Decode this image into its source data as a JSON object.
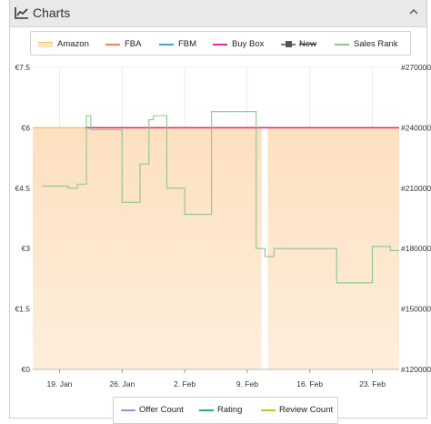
{
  "panel": {
    "title": "Charts",
    "chart_icon": "line-chart-icon",
    "toggle_icon": "chevron-up-icon"
  },
  "legend_top": [
    {
      "name": "Amazon",
      "color": "#f5c27a",
      "style": "area"
    },
    {
      "name": "FBA",
      "color": "#ff7f50",
      "style": "line"
    },
    {
      "name": "FBM",
      "color": "#2fa6de",
      "style": "line"
    },
    {
      "name": "Buy Box",
      "color": "#e0279b",
      "style": "line"
    },
    {
      "name": "New",
      "color": "#555555",
      "style": "marker-struck"
    },
    {
      "name": "Sales Rank",
      "color": "#8cc68c",
      "style": "line"
    }
  ],
  "legend_bottom": [
    {
      "name": "Offer Count",
      "color": "#9b8fd8"
    },
    {
      "name": "Rating",
      "color": "#25a98c"
    },
    {
      "name": "Review Count",
      "color": "#c2c22a"
    }
  ],
  "chart_data": {
    "type": "line",
    "x_range": [
      "2025-01-16",
      "2025-02-26"
    ],
    "x_ticks": [
      "19. Jan",
      "26. Jan",
      "2. Feb",
      "9. Feb",
      "16. Feb",
      "23. Feb"
    ],
    "x_tick_dates": [
      "2025-01-19",
      "2025-01-26",
      "2025-02-02",
      "2025-02-09",
      "2025-02-16",
      "2025-02-23"
    ],
    "y_left": {
      "ticks": [
        "€0",
        "€1.5",
        "€3",
        "€4.5",
        "€6",
        "€7.5"
      ],
      "range": [
        0,
        7.5
      ],
      "unit": "€"
    },
    "y_right": {
      "ticks": [
        "#120000",
        "#150000",
        "#180000",
        "#210000",
        "#240000",
        "#270000"
      ],
      "range": [
        120000,
        270000
      ]
    },
    "grid": true,
    "gaps": [
      {
        "from": "2025-02-11",
        "to": "2025-02-11"
      }
    ],
    "series": [
      {
        "name": "Amazon",
        "axis": "left",
        "style": "area",
        "points": [
          [
            "2025-01-16",
            6.0
          ],
          [
            "2025-02-26",
            6.0
          ]
        ]
      },
      {
        "name": "Buy Box",
        "axis": "left",
        "style": "line",
        "points": [
          [
            "2025-01-16",
            6.0
          ],
          [
            "2025-02-26",
            6.0
          ]
        ]
      },
      {
        "name": "Sales Rank",
        "axis": "right",
        "style": "step",
        "points": [
          [
            "2025-01-17",
            211000
          ],
          [
            "2025-01-20",
            210000
          ],
          [
            "2025-01-21",
            212000
          ],
          [
            "2025-01-22",
            246000
          ],
          [
            "2025-01-22.5",
            239000
          ],
          [
            "2025-01-26",
            203000
          ],
          [
            "2025-01-28",
            222000
          ],
          [
            "2025-01-29",
            244000
          ],
          [
            "2025-01-29.5",
            246000
          ],
          [
            "2025-01-31",
            210000
          ],
          [
            "2025-02-02",
            197000
          ],
          [
            "2025-02-05",
            248000
          ],
          [
            "2025-02-10",
            180000
          ],
          [
            "2025-02-11",
            176000
          ],
          [
            "2025-02-12",
            180000
          ],
          [
            "2025-02-19",
            163000
          ],
          [
            "2025-02-23",
            181000
          ],
          [
            "2025-02-25",
            179000
          ]
        ]
      }
    ]
  }
}
